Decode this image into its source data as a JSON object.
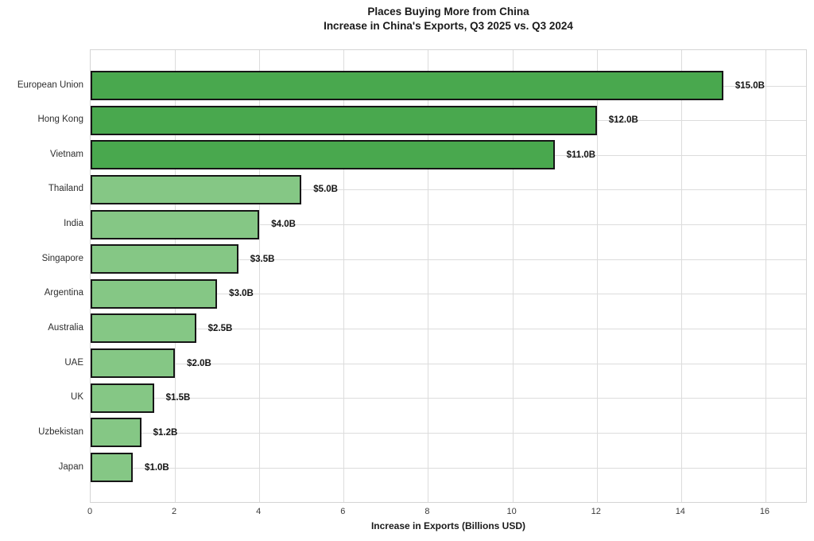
{
  "chart_data": {
    "type": "bar",
    "orientation": "horizontal",
    "title": "Places Buying More from China",
    "subtitle": "Increase in China's Exports, Q3 2025 vs. Q3 2024",
    "xlabel": "Increase in Exports (Billions USD)",
    "categories": [
      "European Union",
      "Hong Kong",
      "Vietnam",
      "Thailand",
      "India",
      "Singapore",
      "Argentina",
      "Australia",
      "UAE",
      "UK",
      "Uzbekistan",
      "Japan"
    ],
    "values": [
      15.0,
      12.0,
      11.0,
      5.0,
      4.0,
      3.5,
      3.0,
      2.5,
      2.0,
      1.5,
      1.2,
      1.0
    ],
    "value_labels": [
      "$15.0B",
      "$12.0B",
      "$11.0B",
      "$5.0B",
      "$4.0B",
      "$3.5B",
      "$3.0B",
      "$2.5B",
      "$2.0B",
      "$1.5B",
      "$1.2B",
      "$1.0B"
    ],
    "bar_colors": [
      "#49a84e",
      "#49a84e",
      "#49a84e",
      "#85c785",
      "#85c785",
      "#85c785",
      "#85c785",
      "#85c785",
      "#85c785",
      "#85c785",
      "#85c785",
      "#85c785"
    ],
    "bar_edge_color": "#161616",
    "grid": true,
    "grid_color": "#dcdcdc",
    "legend": null,
    "xlim": [
      0,
      17
    ],
    "xticks": [
      0,
      2,
      4,
      6,
      8,
      10,
      12,
      14,
      16
    ],
    "xtick_labels": [
      "0",
      "2",
      "4",
      "6",
      "8",
      "10",
      "12",
      "14",
      "16"
    ]
  }
}
